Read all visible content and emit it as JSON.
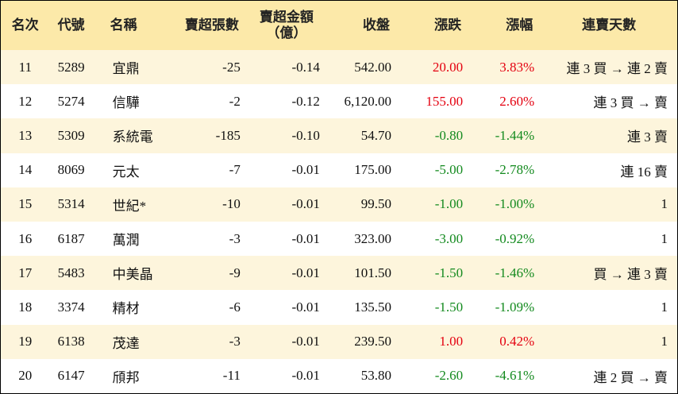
{
  "table": {
    "header": [
      "名次",
      "代號",
      "名稱",
      "賣超張數",
      [
        "賣超金額",
        "（億）"
      ],
      "收盤",
      "漲跌",
      "漲幅",
      "連賣天數"
    ],
    "rows": [
      [
        "11",
        "5289",
        "宜鼎",
        "-25",
        "-0.14",
        "542.00",
        "20.00",
        "3.83%",
        "連 3 買 → 連 2 賣"
      ],
      [
        "12",
        "5274",
        "信驊",
        "-2",
        "-0.12",
        "6,120.00",
        "155.00",
        "2.60%",
        "連 3 買 → 賣"
      ],
      [
        "13",
        "5309",
        "系統電",
        "-185",
        "-0.10",
        "54.70",
        "-0.80",
        "-1.44%",
        "連 3 賣"
      ],
      [
        "14",
        "8069",
        "元太",
        "-7",
        "-0.01",
        "175.00",
        "-5.00",
        "-2.78%",
        "連 16 賣"
      ],
      [
        "15",
        "5314",
        "世紀*",
        "-10",
        "-0.01",
        "99.50",
        "-1.00",
        "-1.00%",
        "1"
      ],
      [
        "16",
        "6187",
        "萬潤",
        "-3",
        "-0.01",
        "323.00",
        "-3.00",
        "-0.92%",
        "1"
      ],
      [
        "17",
        "5483",
        "中美晶",
        "-9",
        "-0.01",
        "101.50",
        "-1.50",
        "-1.46%",
        "買 → 連 3 賣"
      ],
      [
        "18",
        "3374",
        "精材",
        "-6",
        "-0.01",
        "135.50",
        "-1.50",
        "-1.09%",
        "1"
      ],
      [
        "19",
        "6138",
        "茂達",
        "-3",
        "-0.01",
        "239.50",
        "1.00",
        "0.42%",
        "1"
      ],
      [
        "20",
        "6147",
        "頎邦",
        "-11",
        "-0.01",
        "53.80",
        "-2.60",
        "-4.61%",
        "連 2 買 → 賣"
      ]
    ]
  }
}
